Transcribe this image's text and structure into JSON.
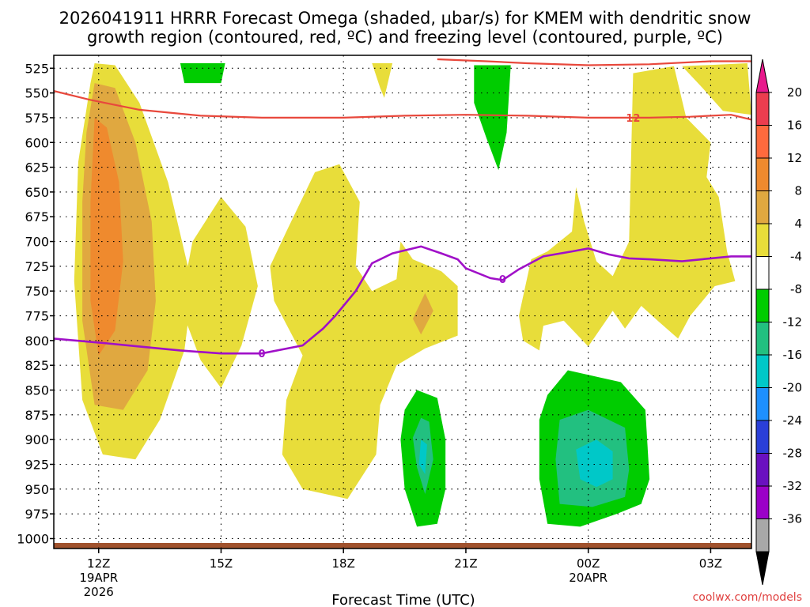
{
  "chart_data": {
    "type": "heatmap",
    "title_line1": "2026041911 HRRR Forecast Omega (shaded, μbar/s) for KMEM with dendritic snow",
    "title_line2": "growth region (contoured, red, ºC) and freezing level (contoured, purple, ºC)",
    "xlabel": "Forecast Time (UTC)",
    "ylabel": "",
    "credit": "coolwx.com/models",
    "y_ticks": [
      "525",
      "550",
      "575",
      "600",
      "625",
      "650",
      "675",
      "700",
      "725",
      "750",
      "775",
      "800",
      "825",
      "850",
      "875",
      "900",
      "925",
      "950",
      "975",
      "1000"
    ],
    "y_values": [
      525,
      550,
      575,
      600,
      625,
      650,
      675,
      700,
      725,
      750,
      775,
      800,
      825,
      850,
      875,
      900,
      925,
      950,
      975,
      1000
    ],
    "ylim": [
      512,
      1010
    ],
    "xlim": [
      10.9,
      28.0
    ],
    "x_ticks": [
      {
        "hour": 12,
        "label": "12Z",
        "sub1": "19APR",
        "sub2": "2026"
      },
      {
        "hour": 15,
        "label": "15Z",
        "sub1": "",
        "sub2": ""
      },
      {
        "hour": 18,
        "label": "18Z",
        "sub1": "",
        "sub2": ""
      },
      {
        "hour": 21,
        "label": "21Z",
        "sub1": "",
        "sub2": ""
      },
      {
        "hour": 24,
        "label": "00Z",
        "sub1": "20APR",
        "sub2": ""
      },
      {
        "hour": 27,
        "label": "03Z",
        "sub1": "",
        "sub2": ""
      }
    ],
    "colorbar": {
      "levels": [
        "20",
        "16",
        "12",
        "8",
        "4",
        "-4",
        "-8",
        "-12",
        "-16",
        "-20",
        "-24",
        "-28",
        "-32",
        "-36"
      ],
      "colors": [
        "#ec3d4f",
        "#ff6a3d",
        "#ef8a2e",
        "#e0a840",
        "#e8dd3a",
        "#ffffff",
        "#00cc00",
        "#22c080",
        "#00c8c8",
        "#1e90ff",
        "#2a3fd8",
        "#6a10c0",
        "#9b00c8",
        "#a8a8a8"
      ],
      "top_color": "#e8198c",
      "bottom_color": "#000000"
    },
    "omega_regions": [
      {
        "level": "4",
        "color": "#e8dd3a",
        "points": [
          [
            11.9,
            520
          ],
          [
            12.4,
            522
          ],
          [
            13.0,
            560
          ],
          [
            13.7,
            640
          ],
          [
            14.3,
            745
          ],
          [
            14.1,
            810
          ],
          [
            13.5,
            880
          ],
          [
            12.9,
            920
          ],
          [
            12.1,
            915
          ],
          [
            11.6,
            860
          ],
          [
            11.4,
            740
          ],
          [
            11.5,
            620
          ],
          [
            11.8,
            540
          ]
        ]
      },
      {
        "level": "8",
        "color": "#e0a840",
        "points": [
          [
            11.9,
            540
          ],
          [
            12.4,
            545
          ],
          [
            12.9,
            600
          ],
          [
            13.3,
            680
          ],
          [
            13.4,
            760
          ],
          [
            13.2,
            830
          ],
          [
            12.6,
            870
          ],
          [
            11.9,
            865
          ],
          [
            11.6,
            780
          ],
          [
            11.6,
            660
          ],
          [
            11.7,
            590
          ]
        ]
      },
      {
        "level": "12",
        "color": "#ef8a2e",
        "points": [
          [
            11.9,
            575
          ],
          [
            12.2,
            585
          ],
          [
            12.5,
            640
          ],
          [
            12.6,
            720
          ],
          [
            12.4,
            790
          ],
          [
            12.0,
            815
          ],
          [
            11.8,
            760
          ],
          [
            11.8,
            660
          ]
        ]
      },
      {
        "level": "4",
        "color": "#e8dd3a",
        "points": [
          [
            15.0,
            655
          ],
          [
            15.6,
            685
          ],
          [
            15.9,
            745
          ],
          [
            15.5,
            805
          ],
          [
            15.0,
            848
          ],
          [
            14.5,
            820
          ],
          [
            14.0,
            765
          ],
          [
            14.3,
            700
          ]
        ]
      },
      {
        "level": "4",
        "color": "#e8dd3a",
        "points": [
          [
            17.3,
            630
          ],
          [
            17.9,
            622
          ],
          [
            18.4,
            660
          ],
          [
            18.3,
            725
          ],
          [
            18.7,
            750
          ],
          [
            19.3,
            738
          ],
          [
            19.4,
            700
          ],
          [
            19.7,
            718
          ],
          [
            20.4,
            730
          ],
          [
            20.8,
            745
          ],
          [
            20.8,
            795
          ],
          [
            20.0,
            808
          ],
          [
            19.3,
            825
          ],
          [
            18.9,
            865
          ],
          [
            18.8,
            915
          ],
          [
            18.1,
            960
          ],
          [
            17.0,
            950
          ],
          [
            16.5,
            915
          ],
          [
            16.6,
            860
          ],
          [
            17.0,
            815
          ],
          [
            16.3,
            760
          ],
          [
            16.2,
            725
          ],
          [
            16.6,
            690
          ]
        ]
      },
      {
        "level": "8",
        "color": "#e0a840",
        "points": [
          [
            20.0,
            752
          ],
          [
            20.2,
            770
          ],
          [
            19.9,
            794
          ],
          [
            19.7,
            778
          ]
        ]
      },
      {
        "level": "4",
        "color": "#e8dd3a",
        "points": [
          [
            22.6,
            718
          ],
          [
            23.0,
            710
          ],
          [
            23.6,
            690
          ],
          [
            23.7,
            645
          ],
          [
            23.9,
            680
          ],
          [
            24.2,
            720
          ],
          [
            24.6,
            735
          ],
          [
            25.0,
            700
          ],
          [
            25.1,
            530
          ],
          [
            26.1,
            523
          ],
          [
            26.4,
            575
          ],
          [
            27.0,
            600
          ],
          [
            26.9,
            635
          ],
          [
            27.2,
            655
          ],
          [
            27.4,
            710
          ],
          [
            27.6,
            740
          ],
          [
            27.1,
            745
          ],
          [
            26.5,
            775
          ],
          [
            26.2,
            798
          ],
          [
            25.7,
            780
          ],
          [
            25.3,
            765
          ],
          [
            24.9,
            788
          ],
          [
            24.6,
            770
          ],
          [
            24.0,
            806
          ],
          [
            23.4,
            780
          ],
          [
            22.9,
            785
          ],
          [
            22.8,
            810
          ],
          [
            22.4,
            800
          ],
          [
            22.3,
            775
          ]
        ]
      },
      {
        "level": "4",
        "color": "#e8dd3a",
        "points": [
          [
            26.3,
            523
          ],
          [
            27.9,
            520
          ],
          [
            28.0,
            572
          ],
          [
            27.3,
            568
          ],
          [
            26.8,
            545
          ]
        ]
      },
      {
        "level": "4",
        "color": "#e8dd3a",
        "points": [
          [
            18.7,
            520
          ],
          [
            19.2,
            520
          ],
          [
            19.0,
            555
          ],
          [
            18.9,
            545
          ]
        ]
      },
      {
        "level": "-8",
        "color": "#00cc00",
        "points": [
          [
            14.0,
            520
          ],
          [
            15.1,
            520
          ],
          [
            15.0,
            540
          ],
          [
            14.1,
            540
          ]
        ]
      },
      {
        "level": "-8",
        "color": "#00cc00",
        "points": [
          [
            21.2,
            522
          ],
          [
            22.1,
            522
          ],
          [
            22.0,
            590
          ],
          [
            21.8,
            628
          ],
          [
            21.5,
            595
          ],
          [
            21.2,
            560
          ]
        ]
      },
      {
        "level": "-8",
        "color": "#00cc00",
        "points": [
          [
            19.8,
            850
          ],
          [
            20.3,
            858
          ],
          [
            20.5,
            900
          ],
          [
            20.5,
            950
          ],
          [
            20.3,
            985
          ],
          [
            19.8,
            988
          ],
          [
            19.5,
            950
          ],
          [
            19.4,
            900
          ],
          [
            19.5,
            870
          ]
        ]
      },
      {
        "level": "-12",
        "color": "#22c080",
        "points": [
          [
            19.9,
            878
          ],
          [
            20.1,
            882
          ],
          [
            20.2,
            920
          ],
          [
            20.0,
            955
          ],
          [
            19.8,
            928
          ],
          [
            19.7,
            898
          ]
        ]
      },
      {
        "level": "-16",
        "color": "#00c8c8",
        "points": [
          [
            19.9,
            900
          ],
          [
            20.05,
            905
          ],
          [
            20.0,
            935
          ],
          [
            19.85,
            925
          ]
        ]
      },
      {
        "level": "-8",
        "color": "#00cc00",
        "points": [
          [
            23.0,
            855
          ],
          [
            23.5,
            830
          ],
          [
            24.8,
            842
          ],
          [
            25.4,
            870
          ],
          [
            25.5,
            940
          ],
          [
            25.3,
            965
          ],
          [
            24.7,
            975
          ],
          [
            23.8,
            988
          ],
          [
            23.0,
            985
          ],
          [
            22.8,
            940
          ],
          [
            22.8,
            880
          ]
        ]
      },
      {
        "level": "-12",
        "color": "#22c080",
        "points": [
          [
            23.3,
            880
          ],
          [
            24.0,
            870
          ],
          [
            24.9,
            888
          ],
          [
            25.0,
            930
          ],
          [
            24.9,
            958
          ],
          [
            24.1,
            968
          ],
          [
            23.3,
            965
          ],
          [
            23.2,
            920
          ]
        ]
      },
      {
        "level": "-16",
        "color": "#00c8c8",
        "points": [
          [
            23.7,
            910
          ],
          [
            24.2,
            900
          ],
          [
            24.6,
            912
          ],
          [
            24.6,
            940
          ],
          [
            24.2,
            948
          ],
          [
            23.8,
            940
          ]
        ]
      }
    ],
    "dgz_contour": {
      "label": "12",
      "color": "#e8483c",
      "points": [
        [
          10.9,
          548
        ],
        [
          11.8,
          557
        ],
        [
          13.0,
          567
        ],
        [
          14.5,
          573
        ],
        [
          16.0,
          575
        ],
        [
          18.0,
          575
        ],
        [
          19.5,
          573
        ],
        [
          21.0,
          572
        ],
        [
          22.5,
          573
        ],
        [
          24.0,
          575
        ],
        [
          25.5,
          575
        ],
        [
          26.5,
          574
        ],
        [
          27.5,
          572
        ],
        [
          28.0,
          577
        ]
      ],
      "label_at": [
        25.1,
        575
      ]
    },
    "dgz_top": {
      "color": "#e8483c",
      "points": [
        [
          20.3,
          516
        ],
        [
          21.5,
          518
        ],
        [
          22.5,
          520
        ],
        [
          24.0,
          522
        ],
        [
          25.5,
          521
        ],
        [
          27.0,
          518
        ],
        [
          28.0,
          518
        ]
      ]
    },
    "freezing_contour": {
      "label": "0",
      "color": "#a010c8",
      "points": [
        [
          10.9,
          798
        ],
        [
          12.0,
          802
        ],
        [
          13.0,
          806
        ],
        [
          14.0,
          810
        ],
        [
          15.0,
          813
        ],
        [
          16.0,
          813
        ],
        [
          17.0,
          805
        ],
        [
          17.5,
          788
        ],
        [
          17.8,
          775
        ],
        [
          18.3,
          750
        ],
        [
          18.7,
          722
        ],
        [
          19.2,
          712
        ],
        [
          19.9,
          705
        ],
        [
          20.4,
          712
        ],
        [
          20.8,
          718
        ],
        [
          21.0,
          727
        ],
        [
          21.6,
          737
        ],
        [
          21.9,
          739
        ],
        [
          22.3,
          728
        ],
        [
          22.9,
          715
        ],
        [
          23.6,
          710
        ],
        [
          24.0,
          707
        ],
        [
          24.5,
          713
        ],
        [
          25.0,
          717
        ],
        [
          25.5,
          718
        ],
        [
          26.3,
          720
        ],
        [
          27.0,
          717
        ],
        [
          27.5,
          715
        ],
        [
          28.0,
          715
        ]
      ],
      "label_at": [
        16.0,
        813
      ],
      "label2_at": [
        21.9,
        738
      ]
    }
  }
}
